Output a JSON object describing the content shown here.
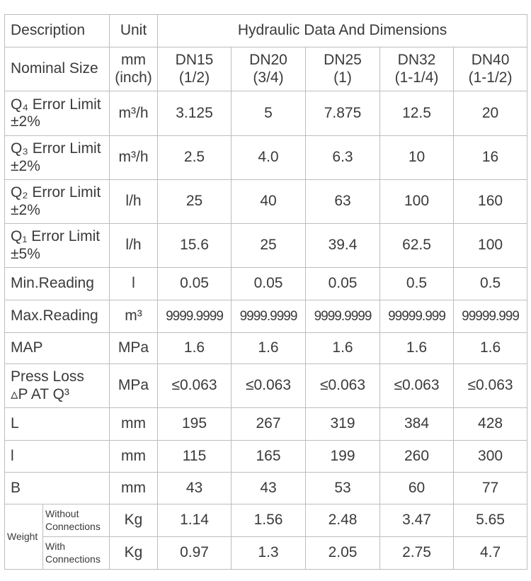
{
  "header": {
    "description": "Description",
    "unit": "Unit",
    "group": "Hydraulic Data And Dimensions"
  },
  "rows": {
    "nominal": {
      "label": "Nominal Size",
      "unit_line1": "mm",
      "unit_line2": "(inch)",
      "sizes": [
        {
          "dn": "DN15",
          "inch": "(1/2)"
        },
        {
          "dn": "DN20",
          "inch": "(3/4)"
        },
        {
          "dn": "DN25",
          "inch": "(1)"
        },
        {
          "dn": "DN32",
          "inch": "(1-1/4)"
        },
        {
          "dn": "DN40",
          "inch": "(1-1/2)"
        }
      ]
    },
    "q4": {
      "label_line1": "Q₄ Error Limit",
      "label_line2": "±2%",
      "unit": "m³/h",
      "values": [
        "3.125",
        "5",
        "7.875",
        "12.5",
        "20"
      ]
    },
    "q3": {
      "label_line1": "Q₃ Error Limit",
      "label_line2": "±2%",
      "unit": "m³/h",
      "values": [
        "2.5",
        "4.0",
        "6.3",
        "10",
        "16"
      ]
    },
    "q2": {
      "label_line1": "Q₂ Error Limit",
      "label_line2": "±2%",
      "unit": "l/h",
      "values": [
        "25",
        "40",
        "63",
        "100",
        "160"
      ]
    },
    "q1": {
      "label_line1": "Q₁ Error Limit",
      "label_line2": "±5%",
      "unit": "l/h",
      "values": [
        "15.6",
        "25",
        "39.4",
        "62.5",
        "100"
      ]
    },
    "min_reading": {
      "label": "Min.Reading",
      "unit": "l",
      "values": [
        "0.05",
        "0.05",
        "0.05",
        "0.5",
        "0.5"
      ]
    },
    "max_reading": {
      "label": "Max.Reading",
      "unit": "m³",
      "values": [
        "9999.9999",
        "9999.9999",
        "9999.9999",
        "99999.999",
        "99999.999"
      ]
    },
    "map": {
      "label": "MAP",
      "unit": "MPa",
      "values": [
        "1.6",
        "1.6",
        "1.6",
        "1.6",
        "1.6"
      ]
    },
    "press_loss": {
      "label_line1": "Press Loss",
      "label_line2": "▵P AT Q³",
      "unit": "MPa",
      "values": [
        "≤0.063",
        "≤0.063",
        "≤0.063",
        "≤0.063",
        "≤0.063"
      ]
    },
    "L": {
      "label": "L",
      "unit": "mm",
      "values": [
        "195",
        "267",
        "319",
        "384",
        "428"
      ]
    },
    "l": {
      "label": "l",
      "unit": "mm",
      "values": [
        "115",
        "165",
        "199",
        "260",
        "300"
      ]
    },
    "B": {
      "label": "B",
      "unit": "mm",
      "values": [
        "43",
        "43",
        "53",
        "60",
        "77"
      ]
    },
    "weight": {
      "label": "Weight",
      "without": {
        "line1": "Without",
        "line2": "Connections",
        "unit": "Kg",
        "values": [
          "1.14",
          "1.56",
          "2.48",
          "3.47",
          "5.65"
        ]
      },
      "with": {
        "line1": "With",
        "line2": "Connections",
        "unit": "Kg",
        "values": [
          "0.97",
          "1.3",
          "2.05",
          "2.75",
          "4.7"
        ]
      }
    }
  }
}
